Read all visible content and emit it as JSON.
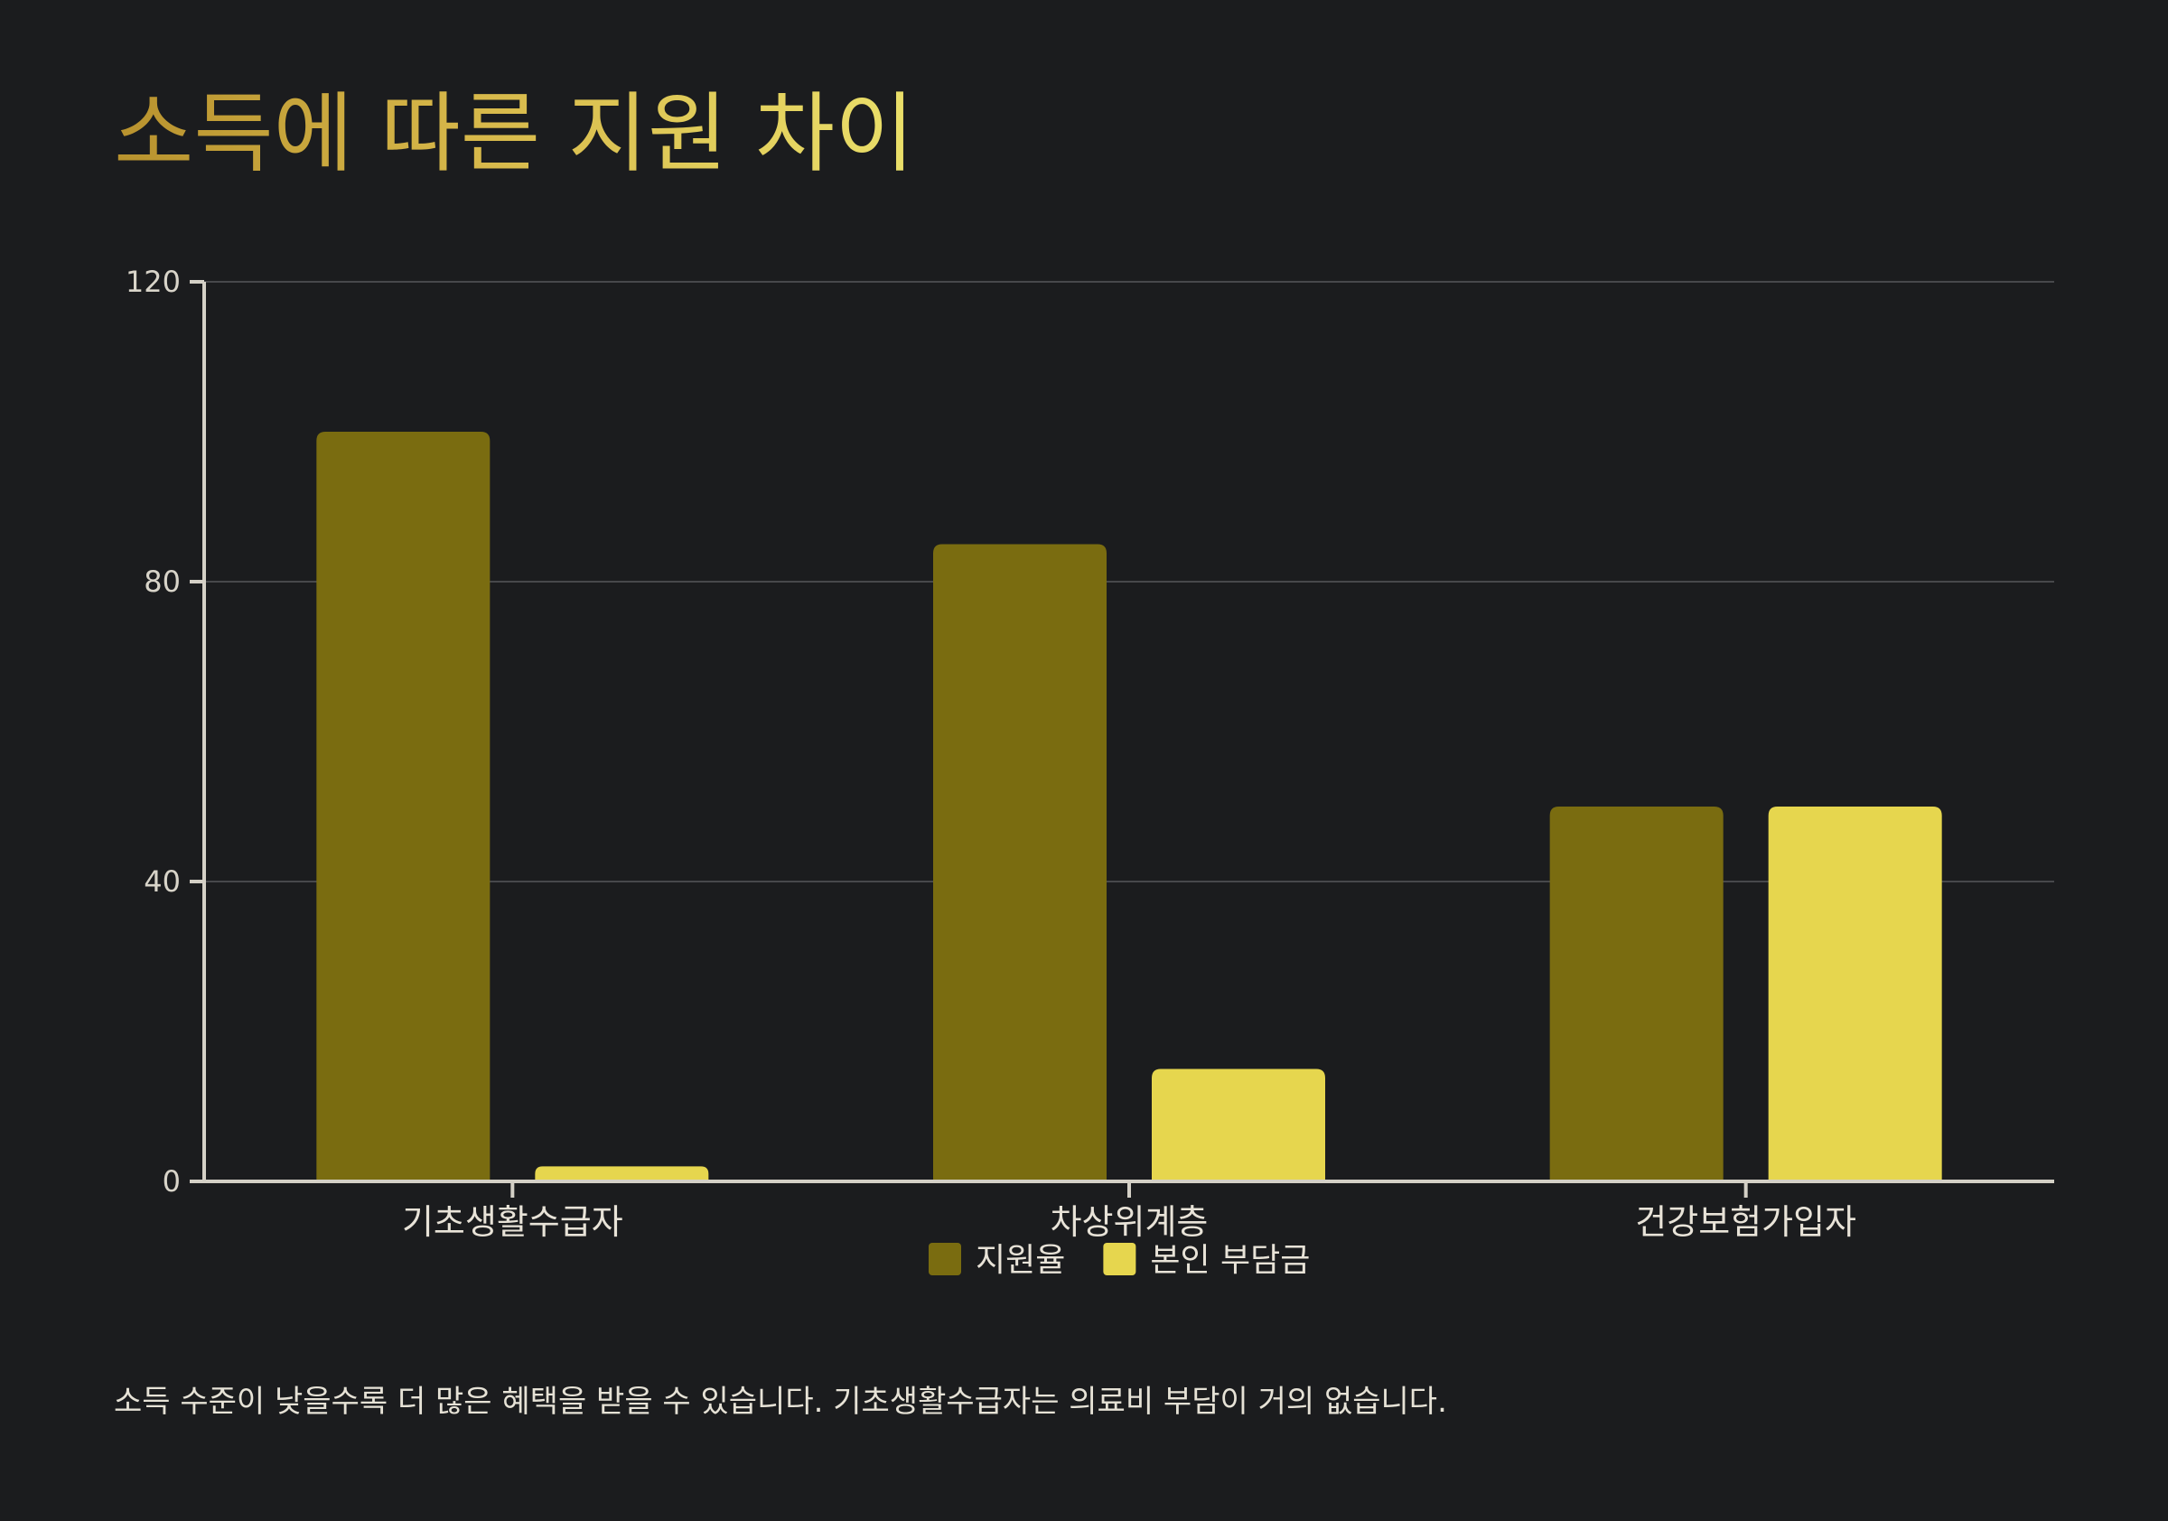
{
  "title": "소득에 따른 지원 차이",
  "caption": "소득 수준이 낮을수록 더 많은 혜택을 받을 수 있습니다. 기초생활수급자는 의료비 부담이 거의 없습니다.",
  "chart_data": {
    "type": "bar",
    "title": "소득에 따른 지원 차이",
    "xlabel": "",
    "ylabel": "",
    "categories": [
      "기초생활수급자",
      "차상위계층",
      "건강보험가입자"
    ],
    "series": [
      {
        "name": "지원율",
        "values": [
          100,
          85,
          50
        ],
        "color": "#7a6c10"
      },
      {
        "name": "본인 부담금",
        "values": [
          2,
          15,
          50
        ],
        "color": "#e6d64e"
      }
    ],
    "ylim": [
      0,
      120
    ],
    "yticks": [
      0,
      40,
      80,
      120
    ],
    "grid": true,
    "legend_position": "bottom-center"
  }
}
